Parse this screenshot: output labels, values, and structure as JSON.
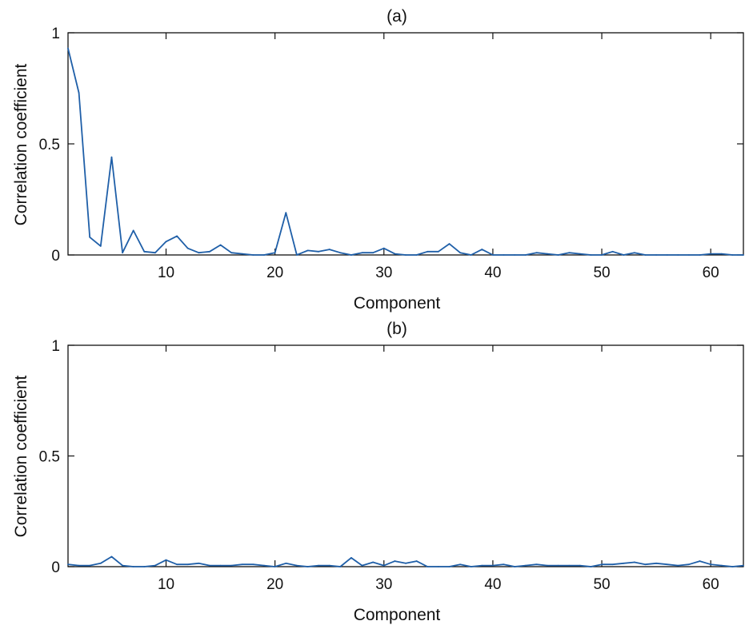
{
  "figure": {
    "background": "#ffffff",
    "line_color": "#1f5fa8",
    "axis_color": "#111111"
  },
  "chart_data": [
    {
      "type": "line",
      "title": "(a)",
      "xlabel": "Component",
      "ylabel": "Correlation coefficient",
      "xlim": [
        1,
        63
      ],
      "ylim": [
        0,
        1
      ],
      "xticks": [
        10,
        20,
        30,
        40,
        50,
        60
      ],
      "yticks": [
        0,
        0.5,
        1
      ],
      "xtick_labels": [
        "10",
        "20",
        "30",
        "40",
        "50",
        "60"
      ],
      "ytick_labels": [
        "0",
        "0.5",
        "1"
      ],
      "grid": false,
      "series": [
        {
          "x": [
            1,
            2,
            3,
            4,
            5,
            6,
            7,
            8,
            9,
            10,
            11,
            12,
            13,
            14,
            15,
            16,
            17,
            18,
            19,
            20,
            21,
            22,
            23,
            24,
            25,
            26,
            27,
            28,
            29,
            30,
            31,
            32,
            33,
            34,
            35,
            36,
            37,
            38,
            39,
            40,
            41,
            42,
            43,
            44,
            45,
            46,
            47,
            48,
            49,
            50,
            51,
            52,
            53,
            54,
            55,
            56,
            57,
            58,
            59,
            60,
            61,
            62,
            63
          ],
          "values": [
            0.93,
            0.73,
            0.08,
            0.04,
            0.44,
            0.01,
            0.11,
            0.015,
            0.01,
            0.06,
            0.085,
            0.03,
            0.01,
            0.015,
            0.045,
            0.01,
            0.005,
            0.0,
            0.0,
            0.01,
            0.19,
            0.0,
            0.02,
            0.015,
            0.025,
            0.01,
            0.0,
            0.01,
            0.01,
            0.03,
            0.005,
            0.0,
            0.0,
            0.015,
            0.015,
            0.05,
            0.01,
            0.0,
            0.025,
            0.0,
            0.0,
            0.0,
            0.0,
            0.01,
            0.005,
            0.0,
            0.01,
            0.005,
            0.0,
            0.0,
            0.015,
            0.0,
            0.01,
            0.0,
            0.0,
            0.0,
            0.0,
            0.0,
            0.0,
            0.005,
            0.005,
            0.0,
            0.0
          ]
        }
      ]
    },
    {
      "type": "line",
      "title": "(b)",
      "xlabel": "Component",
      "ylabel": "Correlation coefficient",
      "xlim": [
        1,
        63
      ],
      "ylim": [
        0,
        1
      ],
      "xticks": [
        10,
        20,
        30,
        40,
        50,
        60
      ],
      "yticks": [
        0,
        0.5,
        1
      ],
      "xtick_labels": [
        "10",
        "20",
        "30",
        "40",
        "50",
        "60"
      ],
      "ytick_labels": [
        "0",
        "0.5",
        "1"
      ],
      "grid": false,
      "series": [
        {
          "x": [
            1,
            2,
            3,
            4,
            5,
            6,
            7,
            8,
            9,
            10,
            11,
            12,
            13,
            14,
            15,
            16,
            17,
            18,
            19,
            20,
            21,
            22,
            23,
            24,
            25,
            26,
            27,
            28,
            29,
            30,
            31,
            32,
            33,
            34,
            35,
            36,
            37,
            38,
            39,
            40,
            41,
            42,
            43,
            44,
            45,
            46,
            47,
            48,
            49,
            50,
            51,
            52,
            53,
            54,
            55,
            56,
            57,
            58,
            59,
            60,
            61,
            62,
            63
          ],
          "values": [
            0.01,
            0.005,
            0.005,
            0.015,
            0.045,
            0.005,
            0.0,
            0.0,
            0.005,
            0.03,
            0.01,
            0.01,
            0.015,
            0.005,
            0.005,
            0.005,
            0.01,
            0.01,
            0.005,
            0.0,
            0.015,
            0.005,
            0.0,
            0.005,
            0.005,
            0.0,
            0.04,
            0.005,
            0.02,
            0.005,
            0.025,
            0.015,
            0.025,
            0.0,
            0.0,
            0.0,
            0.01,
            0.0,
            0.005,
            0.005,
            0.01,
            0.0,
            0.005,
            0.01,
            0.005,
            0.005,
            0.005,
            0.005,
            0.0,
            0.01,
            0.01,
            0.015,
            0.02,
            0.01,
            0.015,
            0.01,
            0.005,
            0.01,
            0.025,
            0.01,
            0.005,
            0.0,
            0.005
          ]
        }
      ]
    }
  ]
}
